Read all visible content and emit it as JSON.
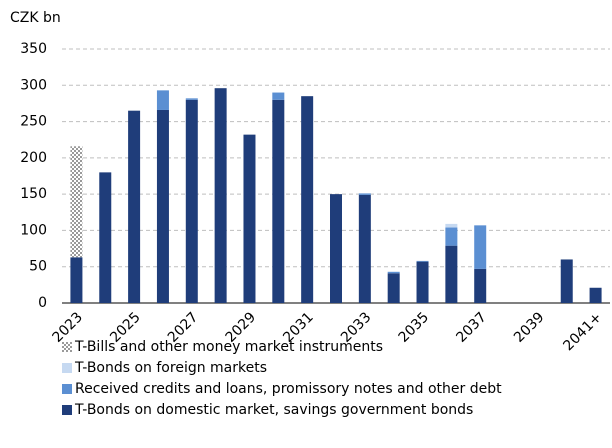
{
  "chart_data": {
    "type": "stacked_bar",
    "y_label": "CZK bn",
    "categories": [
      "2023",
      null,
      "2025",
      null,
      "2027",
      null,
      "2029",
      null,
      "2031",
      null,
      "2033",
      null,
      "2035",
      null,
      "2037",
      null,
      "2039",
      null,
      "2041+"
    ],
    "series": [
      {
        "name": "T-Bills and other money market instruments",
        "color": "#9a9a9a",
        "values": [
          153,
          0,
          0,
          0,
          0,
          0,
          0,
          0,
          0,
          0,
          0,
          0,
          0,
          0,
          0,
          0,
          0,
          0,
          0
        ]
      },
      {
        "name": "T-Bonds on foreign markets",
        "color": "#c6d9f1",
        "values": [
          0,
          0,
          0,
          0,
          0,
          0,
          0,
          0,
          0,
          0,
          0,
          0,
          0,
          5,
          0,
          0,
          0,
          0,
          0
        ]
      },
      {
        "name": "Received credits and loans, promissory notes and other debt",
        "color": "#5b8fd2",
        "values": [
          0,
          0,
          0,
          27,
          2,
          0,
          0,
          10,
          0,
          0,
          2,
          2,
          1,
          25,
          60,
          0,
          0,
          0,
          0
        ]
      },
      {
        "name": "T-Bonds on domestic market, savings government bonds",
        "color": "#1f3d7a",
        "values": [
          63,
          180,
          265,
          266,
          280,
          296,
          232,
          280,
          285,
          150,
          149,
          41,
          57,
          79,
          47,
          0,
          0,
          60,
          21
        ]
      }
    ],
    "ylim": [
      0,
      350
    ],
    "yticks": [
      0,
      50,
      100,
      150,
      200,
      250,
      300,
      350
    ],
    "grid": true
  }
}
